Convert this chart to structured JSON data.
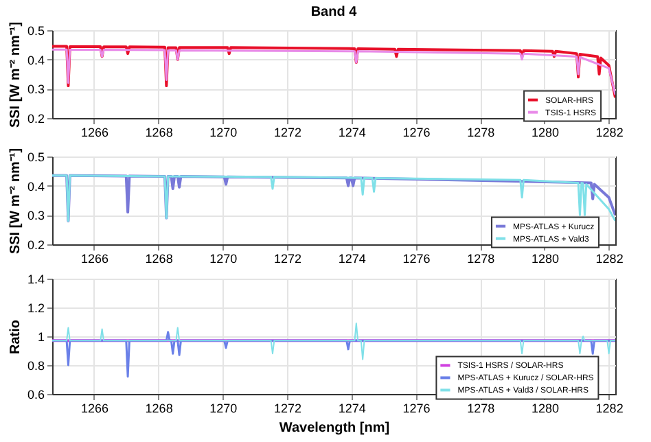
{
  "chart_data": [
    {
      "type": "line",
      "title": "Band 4",
      "ylabel": "SSI [W m⁻² nm⁻¹]",
      "xlim": [
        1264.7,
        1282.2
      ],
      "xticks": [
        1266,
        1268,
        1270,
        1272,
        1274,
        1276,
        1278,
        1280,
        1282
      ],
      "ylim": [
        0.2,
        0.5
      ],
      "yticks": [
        0.2,
        0.3,
        0.4,
        0.5
      ],
      "grid": true,
      "legend": "bottom right",
      "series": [
        {
          "name": "SOLAR-HRS",
          "color": "#e8102a",
          "x": [
            1264.7,
            1265.15,
            1265.2,
            1265.25,
            1266.2,
            1266.25,
            1266.3,
            1267.0,
            1267.05,
            1267.1,
            1268.2,
            1268.25,
            1268.3,
            1268.55,
            1268.6,
            1268.65,
            1270.15,
            1270.2,
            1270.25,
            1274.1,
            1274.15,
            1274.2,
            1275.35,
            1275.4,
            1275.45,
            1279.25,
            1279.3,
            1279.35,
            1280.25,
            1280.3,
            1280.35,
            1281.0,
            1281.05,
            1281.1,
            1281.65,
            1281.7,
            1281.75,
            1282.0,
            1282.2
          ],
          "values": [
            0.445,
            0.445,
            0.31,
            0.444,
            0.444,
            0.41,
            0.443,
            0.443,
            0.42,
            0.443,
            0.442,
            0.31,
            0.44,
            0.44,
            0.4,
            0.441,
            0.441,
            0.42,
            0.441,
            0.437,
            0.39,
            0.437,
            0.435,
            0.41,
            0.435,
            0.43,
            0.41,
            0.43,
            0.428,
            0.41,
            0.428,
            0.42,
            0.34,
            0.418,
            0.41,
            0.35,
            0.405,
            0.38,
            0.27
          ]
        },
        {
          "name": "TSIS-1 HSRS",
          "color": "#e88ae8",
          "x": [
            1264.7,
            1265.15,
            1265.2,
            1265.25,
            1266.2,
            1266.25,
            1266.3,
            1268.2,
            1268.25,
            1268.3,
            1268.55,
            1268.6,
            1268.65,
            1274.1,
            1274.15,
            1274.2,
            1279.25,
            1279.3,
            1279.35,
            1281.0,
            1281.05,
            1281.1,
            1282.0,
            1282.2
          ],
          "values": [
            0.434,
            0.434,
            0.32,
            0.433,
            0.433,
            0.41,
            0.433,
            0.432,
            0.33,
            0.431,
            0.431,
            0.4,
            0.431,
            0.428,
            0.39,
            0.428,
            0.42,
            0.4,
            0.42,
            0.41,
            0.35,
            0.408,
            0.37,
            0.28
          ]
        }
      ]
    },
    {
      "type": "line",
      "ylabel": "SSI [W m⁻² nm⁻¹]",
      "xlim": [
        1264.7,
        1282.2
      ],
      "xticks": [
        1266,
        1268,
        1270,
        1272,
        1274,
        1276,
        1278,
        1280,
        1282
      ],
      "ylim": [
        0.2,
        0.5
      ],
      "yticks": [
        0.2,
        0.3,
        0.4,
        0.5
      ],
      "grid": true,
      "legend": "bottom right",
      "series": [
        {
          "name": "MPS-ATLAS + Kurucz",
          "color": "#7878d8",
          "x": [
            1264.7,
            1265.15,
            1265.2,
            1265.25,
            1267.0,
            1267.05,
            1267.1,
            1268.2,
            1268.25,
            1268.3,
            1268.4,
            1268.45,
            1268.5,
            1268.6,
            1268.65,
            1268.7,
            1270.05,
            1270.1,
            1270.15,
            1273.85,
            1273.9,
            1273.95,
            1274.0,
            1274.05,
            1274.1,
            1281.45,
            1281.5,
            1281.55,
            1282.0,
            1282.2
          ],
          "values": [
            0.435,
            0.435,
            0.28,
            0.435,
            0.433,
            0.31,
            0.433,
            0.432,
            0.29,
            0.432,
            0.432,
            0.39,
            0.432,
            0.432,
            0.395,
            0.432,
            0.43,
            0.405,
            0.43,
            0.427,
            0.4,
            0.427,
            0.427,
            0.4,
            0.427,
            0.41,
            0.355,
            0.405,
            0.36,
            0.3
          ]
        },
        {
          "name": "MPS-ATLAS + Vald3",
          "color": "#7fe0e8",
          "x": [
            1264.7,
            1265.15,
            1265.2,
            1265.25,
            1268.2,
            1268.25,
            1268.3,
            1271.5,
            1271.55,
            1271.6,
            1274.3,
            1274.35,
            1274.4,
            1274.65,
            1274.7,
            1274.75,
            1279.25,
            1279.3,
            1279.35,
            1281.05,
            1281.1,
            1281.15,
            1281.2,
            1281.25,
            1281.3,
            1282.0,
            1282.2
          ],
          "values": [
            0.435,
            0.435,
            0.28,
            0.435,
            0.432,
            0.29,
            0.432,
            0.43,
            0.39,
            0.43,
            0.427,
            0.37,
            0.427,
            0.426,
            0.38,
            0.426,
            0.42,
            0.36,
            0.42,
            0.41,
            0.3,
            0.41,
            0.408,
            0.3,
            0.405,
            0.32,
            0.28
          ]
        }
      ]
    },
    {
      "type": "line",
      "ylabel": "Ratio",
      "xlabel": "Wavelength [nm]",
      "xlim": [
        1264.7,
        1282.2
      ],
      "xticks": [
        1266,
        1268,
        1270,
        1272,
        1274,
        1276,
        1278,
        1280,
        1282
      ],
      "ylim": [
        0.6,
        1.4
      ],
      "yticks": [
        0.6,
        0.8,
        1,
        1.2,
        1.4
      ],
      "grid": true,
      "legend": "bottom right",
      "series": [
        {
          "name": "TSIS-1 HSRS / SOLAR-HRS",
          "color": "#d040e0",
          "x": [
            1264.7,
            1282.2
          ],
          "values": [
            0.97,
            0.97
          ]
        },
        {
          "name": "MPS-ATLAS + Kurucz / SOLAR-HRS",
          "color": "#6a80e8",
          "x": [
            1264.7,
            1265.15,
            1265.2,
            1265.25,
            1267.0,
            1267.05,
            1267.1,
            1268.25,
            1268.3,
            1268.35,
            1268.4,
            1268.45,
            1268.5,
            1268.6,
            1268.65,
            1268.7,
            1270.05,
            1270.1,
            1270.15,
            1273.85,
            1273.9,
            1273.95,
            1281.45,
            1281.5,
            1281.55,
            1282.2
          ],
          "values": [
            0.97,
            0.97,
            0.8,
            0.97,
            0.97,
            0.72,
            0.97,
            0.97,
            1.03,
            0.97,
            0.97,
            0.88,
            0.97,
            0.97,
            0.87,
            0.97,
            0.97,
            0.92,
            0.97,
            0.97,
            0.91,
            0.97,
            0.97,
            0.88,
            0.97,
            0.97
          ]
        },
        {
          "name": "MPS-ATLAS + Vald3 / SOLAR-HRS",
          "color": "#7fe0e8",
          "x": [
            1264.7,
            1265.15,
            1265.2,
            1265.25,
            1266.2,
            1266.25,
            1266.3,
            1268.55,
            1268.6,
            1268.65,
            1271.5,
            1271.55,
            1271.6,
            1274.1,
            1274.15,
            1274.2,
            1274.3,
            1274.35,
            1274.4,
            1279.25,
            1279.3,
            1279.35,
            1281.05,
            1281.1,
            1281.15,
            1281.2,
            1281.25,
            1281.95,
            1282.0,
            1282.05,
            1282.2
          ],
          "values": [
            0.97,
            0.97,
            1.06,
            0.97,
            0.97,
            1.05,
            0.97,
            0.97,
            1.06,
            0.97,
            0.97,
            0.88,
            0.97,
            0.97,
            1.09,
            0.97,
            0.97,
            0.84,
            0.97,
            0.97,
            0.88,
            0.97,
            0.97,
            0.88,
            0.97,
            1.0,
            0.97,
            0.97,
            0.88,
            0.97,
            0.97
          ]
        }
      ]
    }
  ]
}
